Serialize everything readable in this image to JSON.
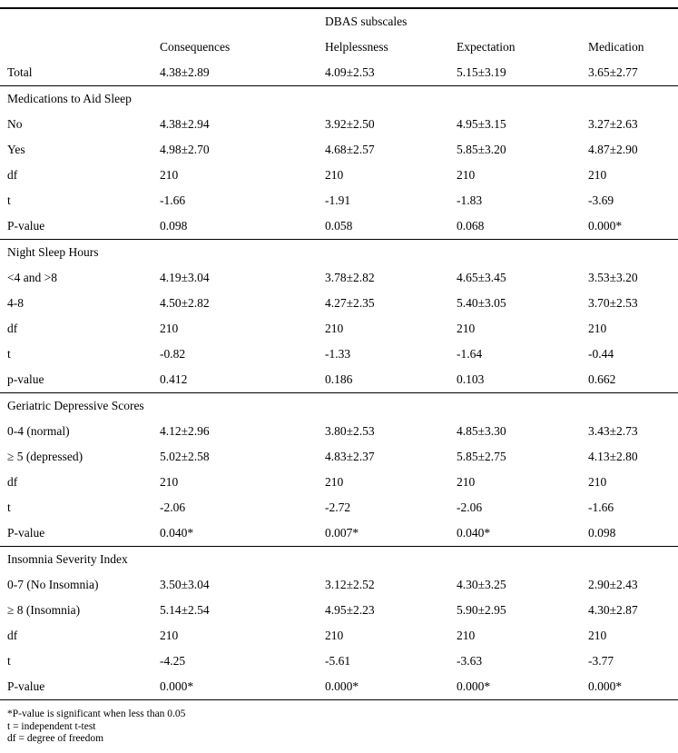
{
  "table": {
    "group_header": "DBAS subscales",
    "columns": [
      "Consequences",
      "Helplessness",
      "Expectation",
      "Medication"
    ],
    "total_row": {
      "label": "Total",
      "values": [
        "4.38±2.89",
        "4.09±2.53",
        "5.15±3.19",
        "3.65±2.77"
      ]
    },
    "sections": [
      {
        "title": "Medications to Aid Sleep",
        "rows": [
          {
            "label": "No",
            "values": [
              "4.38±2.94",
              "3.92±2.50",
              "4.95±3.15",
              "3.27±2.63"
            ]
          },
          {
            "label": "Yes",
            "values": [
              "4.98±2.70",
              "4.68±2.57",
              "5.85±3.20",
              "4.87±2.90"
            ]
          },
          {
            "label": "df",
            "values": [
              "210",
              "210",
              "210",
              "210"
            ]
          },
          {
            "label": "t",
            "values": [
              "-1.66",
              "-1.91",
              "-1.83",
              "-3.69"
            ]
          },
          {
            "label": "P-value",
            "values": [
              "0.098",
              "0.058",
              "0.068",
              "0.000*"
            ]
          }
        ]
      },
      {
        "title": "Night Sleep Hours",
        "rows": [
          {
            "label": "<4 and >8",
            "values": [
              "4.19±3.04",
              "3.78±2.82",
              "4.65±3.45",
              "3.53±3.20"
            ]
          },
          {
            "label": "4-8",
            "values": [
              "4.50±2.82",
              "4.27±2.35",
              "5.40±3.05",
              "3.70±2.53"
            ]
          },
          {
            "label": "df",
            "values": [
              "210",
              "210",
              "210",
              "210"
            ]
          },
          {
            "label": "t",
            "values": [
              "-0.82",
              "-1.33",
              "-1.64",
              "-0.44"
            ]
          },
          {
            "label": "p-value",
            "values": [
              "0.412",
              "0.186",
              "0.103",
              "0.662"
            ]
          }
        ]
      },
      {
        "title": "Geriatric Depressive Scores",
        "rows": [
          {
            "label": "0-4 (normal)",
            "values": [
              "4.12±2.96",
              "3.80±2.53",
              "4.85±3.30",
              "3.43±2.73"
            ]
          },
          {
            "label": "≥ 5 (depressed)",
            "values": [
              "5.02±2.58",
              "4.83±2.37",
              "5.85±2.75",
              "4.13±2.80"
            ]
          },
          {
            "label": "df",
            "values": [
              "210",
              "210",
              "210",
              "210"
            ]
          },
          {
            "label": "t",
            "values": [
              "-2.06",
              "-2.72",
              "-2.06",
              "-1.66"
            ]
          },
          {
            "label": "P-value",
            "values": [
              "0.040*",
              "0.007*",
              "0.040*",
              "0.098"
            ]
          }
        ]
      },
      {
        "title": "Insomnia Severity Index",
        "rows": [
          {
            "label": "0-7 (No Insomnia)",
            "values": [
              "3.50±3.04",
              "3.12±2.52",
              "4.30±3.25",
              "2.90±2.43"
            ]
          },
          {
            "label": "≥ 8 (Insomnia)",
            "values": [
              "5.14±2.54",
              "4.95±2.23",
              "5.90±2.95",
              "4.30±2.87"
            ]
          },
          {
            "label": "df",
            "values": [
              "210",
              "210",
              "210",
              "210"
            ]
          },
          {
            "label": "t",
            "values": [
              "-4.25",
              "-5.61",
              "-3.63",
              "-3.77"
            ]
          },
          {
            "label": "P-value",
            "values": [
              "0.000*",
              "0.000*",
              "0.000*",
              "0.000*"
            ]
          }
        ]
      }
    ],
    "footnotes": [
      "*P-value is significant when less than 0.05",
      "t = independent t-test",
      "df = degree of freedom"
    ]
  }
}
